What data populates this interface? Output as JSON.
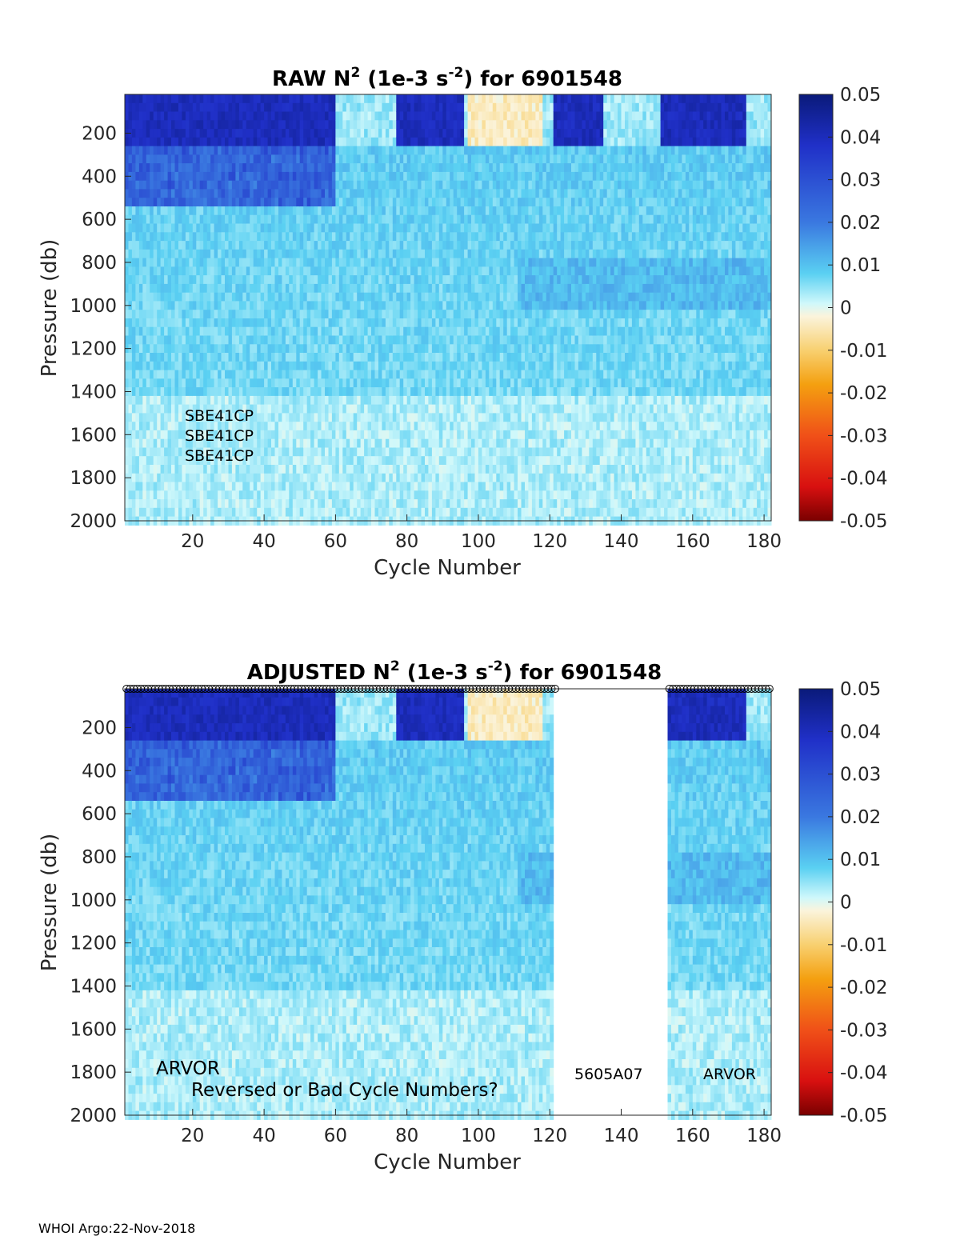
{
  "footer": "WHOI Argo:22-Nov-2018",
  "colorbar": {
    "ticks": [
      "0.05",
      "0.04",
      "0.03",
      "0.02",
      "0.01",
      "0",
      "-0.01",
      "-0.02",
      "-0.03",
      "-0.04",
      "-0.05"
    ],
    "range": [
      -0.05,
      0.05
    ]
  },
  "chart_data": [
    {
      "type": "heatmap",
      "title": {
        "prefix": "RAW N",
        "sup": "2",
        "mid": " (1e-3 s",
        "sup2": "-2",
        "suffix": ") for 6901548"
      },
      "xlabel": "Cycle Number",
      "ylabel": "Pressure (db)",
      "xlim": [
        1,
        182
      ],
      "ylim": [
        2000,
        20
      ],
      "xticks": [
        "20",
        "40",
        "60",
        "80",
        "100",
        "120",
        "140",
        "160",
        "180"
      ],
      "yticks": [
        "200",
        "400",
        "600",
        "800",
        "1000",
        "1200",
        "1400",
        "1600",
        "1800",
        "2000"
      ],
      "color_scale": {
        "min": -0.05,
        "max": 0.05
      },
      "annotations": [
        "SBE41CP",
        "SBE41CP",
        "SBE41CP"
      ],
      "gap": null
    },
    {
      "type": "heatmap",
      "title": {
        "prefix": "ADJUSTED N",
        "sup": "2",
        "mid": " (1e-3 s",
        "sup2": "-2",
        "suffix": ") for 6901548"
      },
      "xlabel": "Cycle Number",
      "ylabel": "Pressure (db)",
      "xlim": [
        1,
        182
      ],
      "ylim": [
        2000,
        20
      ],
      "xticks": [
        "20",
        "40",
        "60",
        "80",
        "100",
        "120",
        "140",
        "160",
        "180"
      ],
      "yticks": [
        "200",
        "400",
        "600",
        "800",
        "1000",
        "1200",
        "1400",
        "1600",
        "1800",
        "2000"
      ],
      "color_scale": {
        "min": -0.05,
        "max": 0.05
      },
      "annotations": [
        "ARVOR",
        "Reversed or Bad Cycle Numbers?",
        "5605A07",
        "ARVOR"
      ],
      "gap": [
        121,
        153
      ]
    }
  ]
}
